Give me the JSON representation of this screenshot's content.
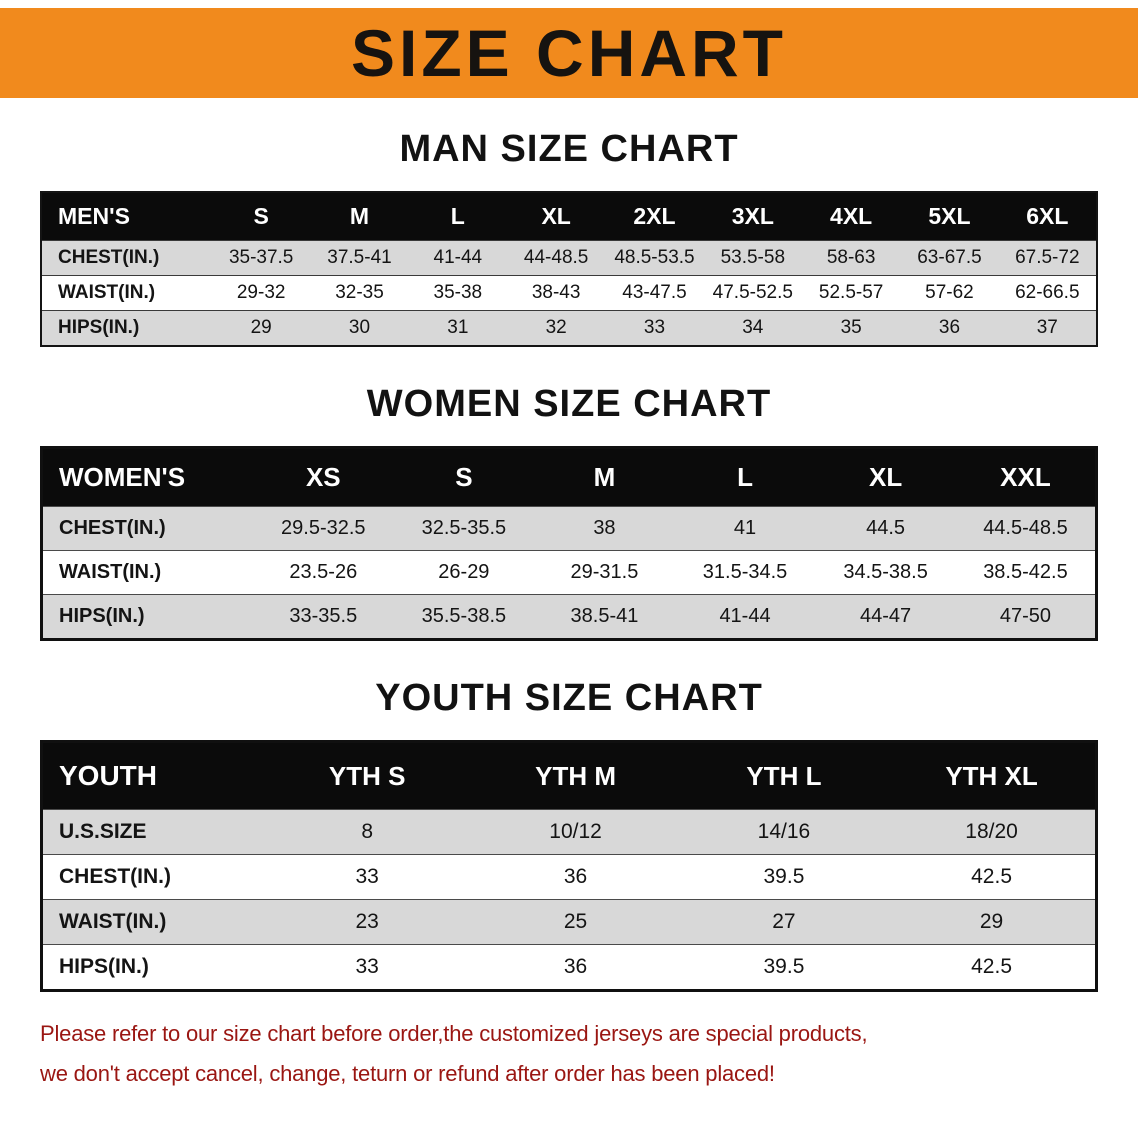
{
  "banner": {
    "title": "SIZE CHART"
  },
  "sections": {
    "men": {
      "heading": "MAN SIZE CHART"
    },
    "women": {
      "heading": "WOMEN SIZE CHART"
    },
    "youth": {
      "heading": "YOUTH SIZE CHART"
    }
  },
  "tables": {
    "men": {
      "header": [
        "MEN'S",
        "S",
        "M",
        "L",
        "XL",
        "2XL",
        "3XL",
        "4XL",
        "5XL",
        "6XL"
      ],
      "rows": [
        [
          "CHEST(IN.)",
          "35-37.5",
          "37.5-41",
          "41-44",
          "44-48.5",
          "48.5-53.5",
          "53.5-58",
          "58-63",
          "63-67.5",
          "67.5-72"
        ],
        [
          "WAIST(IN.)",
          "29-32",
          "32-35",
          "35-38",
          "38-43",
          "43-47.5",
          "47.5-52.5",
          "52.5-57",
          "57-62",
          "62-66.5"
        ],
        [
          "HIPS(IN.)",
          "29",
          "30",
          "31",
          "32",
          "33",
          "34",
          "35",
          "36",
          "37"
        ]
      ]
    },
    "women": {
      "header": [
        "WOMEN'S",
        "XS",
        "S",
        "M",
        "L",
        "XL",
        "XXL"
      ],
      "rows": [
        [
          "CHEST(IN.)",
          "29.5-32.5",
          "32.5-35.5",
          "38",
          "41",
          "44.5",
          "44.5-48.5"
        ],
        [
          "WAIST(IN.)",
          "23.5-26",
          "26-29",
          "29-31.5",
          "31.5-34.5",
          "34.5-38.5",
          "38.5-42.5"
        ],
        [
          "HIPS(IN.)",
          "33-35.5",
          "35.5-38.5",
          "38.5-41",
          "41-44",
          "44-47",
          "47-50"
        ]
      ]
    },
    "youth": {
      "header": [
        "YOUTH",
        "YTH S",
        "YTH M",
        "YTH L",
        "YTH XL"
      ],
      "rows": [
        [
          "U.S.SIZE",
          "8",
          "10/12",
          "14/16",
          "18/20"
        ],
        [
          "CHEST(IN.)",
          "33",
          "36",
          "39.5",
          "42.5"
        ],
        [
          "WAIST(IN.)",
          "23",
          "25",
          "27",
          "29"
        ],
        [
          "HIPS(IN.)",
          "33",
          "36",
          "39.5",
          "42.5"
        ]
      ]
    }
  },
  "footer": {
    "line1": "Please refer to our size chart before order,the customized jerseys are special products,",
    "line2": "we don't accept cancel, change, teturn or refund after order has been placed!"
  },
  "colors": {
    "banner_bg": "#f18a1d",
    "header_bg": "#0b0b0b",
    "row_alt_bg": "#d8d8d8",
    "footer_text": "#9a1612"
  }
}
